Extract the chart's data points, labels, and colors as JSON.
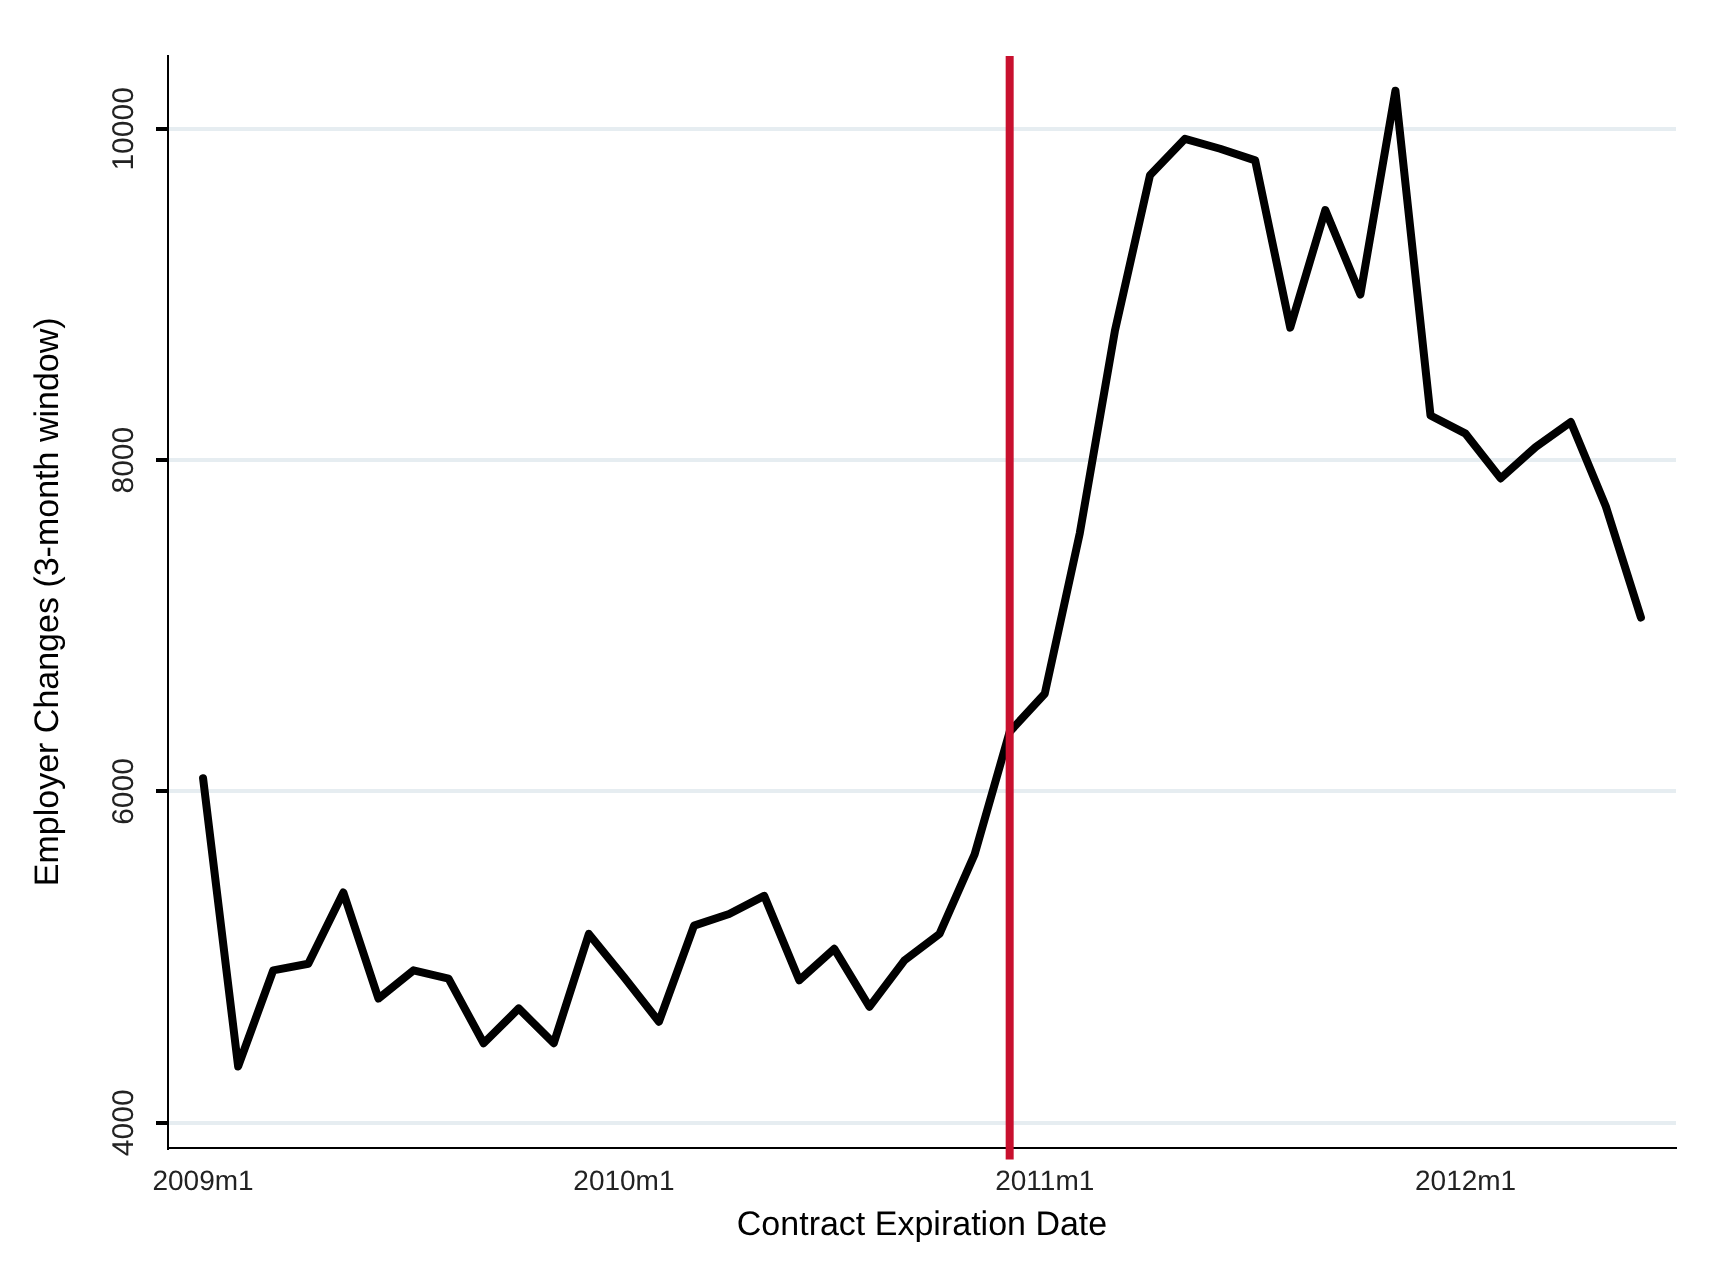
{
  "chart_data": {
    "type": "line",
    "xlabel": "Contract Expiration Date",
    "ylabel": "Employer Changes (3-month window)",
    "x": [
      "2009-01",
      "2009-02",
      "2009-03",
      "2009-04",
      "2009-05",
      "2009-06",
      "2009-07",
      "2009-08",
      "2009-09",
      "2009-10",
      "2009-11",
      "2009-12",
      "2010-01",
      "2010-02",
      "2010-03",
      "2010-04",
      "2010-05",
      "2010-06",
      "2010-07",
      "2010-08",
      "2010-09",
      "2010-10",
      "2010-11",
      "2010-12",
      "2011-01",
      "2011-02",
      "2011-03",
      "2011-04",
      "2011-05",
      "2011-06",
      "2011-07",
      "2011-08",
      "2011-09",
      "2011-10",
      "2011-11",
      "2011-12",
      "2012-01",
      "2012-02",
      "2012-03",
      "2012-04",
      "2012-05",
      "2012-06"
    ],
    "series": [
      {
        "color": "#000000",
        "values": [
          6080,
          4340,
          4920,
          4960,
          5390,
          4750,
          4920,
          4870,
          4480,
          4690,
          4480,
          5140,
          4880,
          4610,
          5190,
          5260,
          5370,
          4860,
          5050,
          4700,
          4980,
          5140,
          5620,
          6360,
          6590,
          7560,
          8780,
          9720,
          9940,
          9880,
          9810,
          8800,
          9510,
          9000,
          10230,
          8270,
          8160,
          7890,
          8080,
          8230,
          7720,
          7050
        ]
      }
    ],
    "xlim": [
      "2008-12",
      "2012-07"
    ],
    "xticks": [
      {
        "value": "2009-01",
        "label": "2009m1"
      },
      {
        "value": "2010-01",
        "label": "2010m1"
      },
      {
        "value": "2011-01",
        "label": "2011m1"
      },
      {
        "value": "2012-01",
        "label": "2012m1"
      }
    ],
    "ylim": [
      3850,
      10440
    ],
    "yticks": [
      4000,
      6000,
      8000,
      10000
    ],
    "grid": "y",
    "legend": false,
    "marker": "none",
    "line_style": "solid",
    "ref_lines": [
      {
        "axis": "x",
        "value": "2010-12",
        "color": "#c8102e"
      }
    ]
  }
}
